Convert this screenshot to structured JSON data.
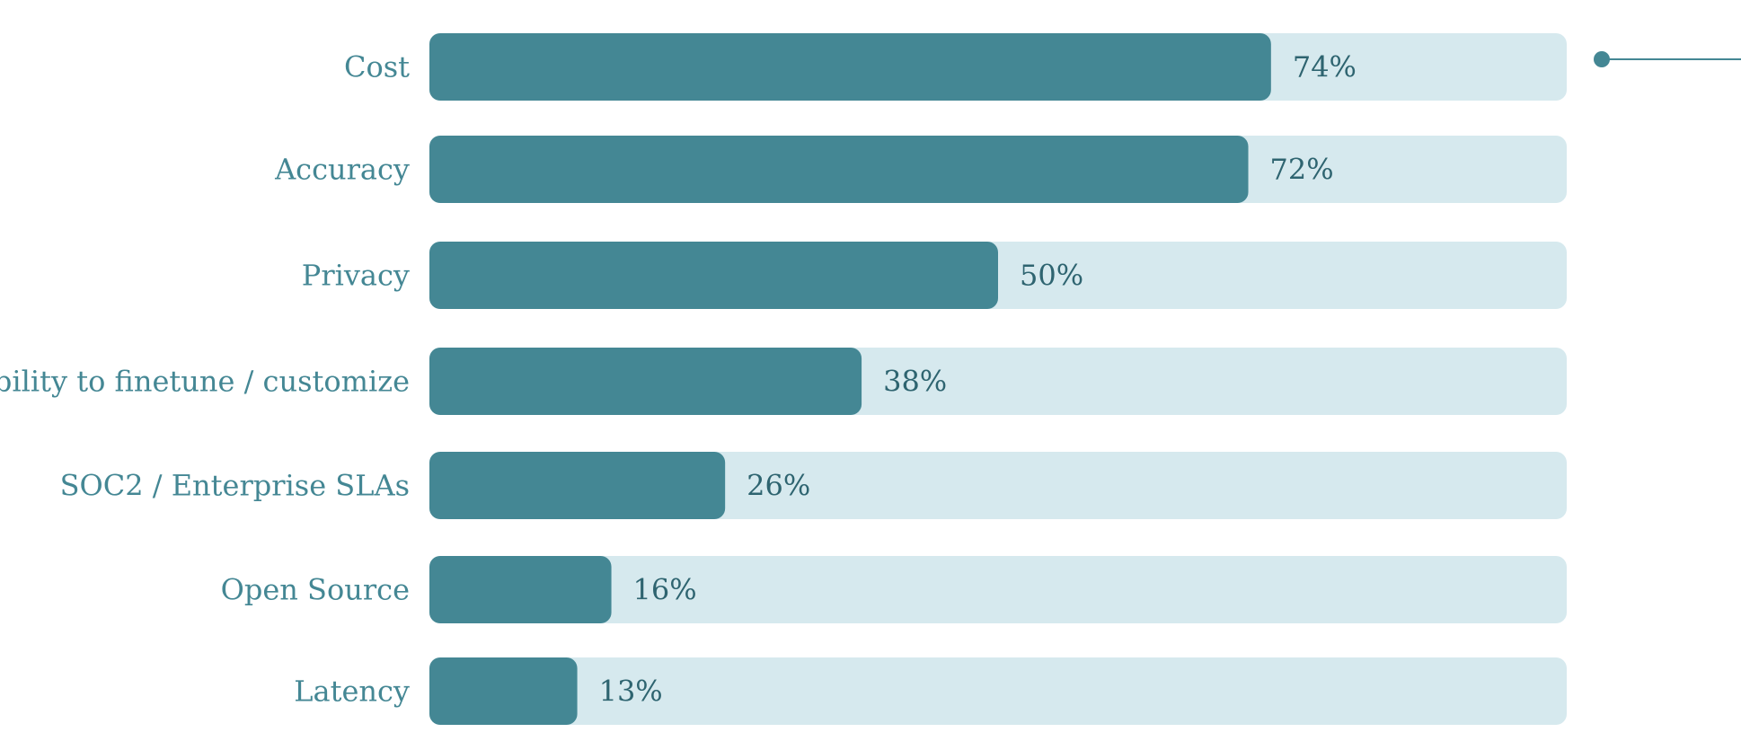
{
  "chart_data": {
    "type": "bar",
    "orientation": "horizontal",
    "categories": [
      "Cost",
      "Accuracy",
      "Privacy",
      "Ability to finetune / customize",
      "SOC2 / Enterprise SLAs",
      "Open Source",
      "Latency"
    ],
    "values": [
      74,
      72,
      50,
      38,
      26,
      16,
      13
    ],
    "value_labels": [
      "74%",
      "72%",
      "50%",
      "38%",
      "26%",
      "16%",
      "13%"
    ],
    "xlim": [
      0,
      100
    ],
    "unit": "%",
    "grid": false,
    "legend": "none"
  },
  "colors": {
    "bar_fill": "#448794",
    "bar_track": "#d6e9ee",
    "category_text": "#448794",
    "value_text": "#2e6470",
    "connector": "#448794"
  }
}
